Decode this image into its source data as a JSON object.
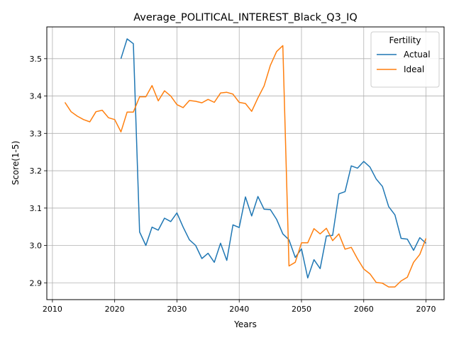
{
  "chart_data": {
    "type": "line",
    "title": "Average_POLITICAL_INTEREST_Black_Q3_IQ",
    "xlabel": "Years",
    "ylabel": "Score(1-5)",
    "xlim": [
      2009.1,
      2072.9
    ],
    "ylim": [
      2.855,
      3.585
    ],
    "x_ticks": [
      2010,
      2020,
      2030,
      2040,
      2050,
      2060,
      2070
    ],
    "y_ticks": [
      2.9,
      3.0,
      3.1,
      3.2,
      3.3,
      3.4,
      3.5
    ],
    "x_tick_labels": [
      "2010",
      "2020",
      "2030",
      "2040",
      "2050",
      "2060",
      "2070"
    ],
    "y_tick_labels": [
      "2.9",
      "3.0",
      "3.1",
      "3.2",
      "3.3",
      "3.4",
      "3.5"
    ],
    "grid": true,
    "legend": {
      "title": "Fertility",
      "placement": "top-right"
    },
    "series": [
      {
        "name": "Actual",
        "color": "#1f77b4",
        "x": [
          2021,
          2022,
          2023,
          2024,
          2025,
          2026,
          2027,
          2028,
          2029,
          2030,
          2031,
          2032,
          2033,
          2034,
          2035,
          2036,
          2037,
          2038,
          2039,
          2040,
          2041,
          2042,
          2043,
          2044,
          2045,
          2046,
          2047,
          2048,
          2049,
          2050,
          2051,
          2052,
          2053,
          2054,
          2055,
          2056,
          2057,
          2058,
          2059,
          2060,
          2061,
          2062,
          2063,
          2064,
          2065,
          2066,
          2067,
          2068,
          2069,
          2070
        ],
        "values": [
          3.5,
          3.553,
          3.54,
          3.036,
          3.0,
          3.049,
          3.041,
          3.073,
          3.064,
          3.087,
          3.049,
          3.015,
          3.0,
          2.965,
          2.979,
          2.955,
          3.006,
          2.96,
          3.055,
          3.048,
          3.13,
          3.079,
          3.131,
          3.097,
          3.096,
          3.07,
          3.031,
          3.015,
          2.968,
          2.991,
          2.913,
          2.962,
          2.938,
          3.025,
          3.027,
          3.138,
          3.144,
          3.213,
          3.207,
          3.225,
          3.21,
          3.178,
          3.158,
          3.104,
          3.082,
          3.019,
          3.017,
          2.987,
          3.021,
          3.006
        ]
      },
      {
        "name": "Ideal",
        "color": "#ff7f0e",
        "x": [
          2012,
          2013,
          2014,
          2015,
          2016,
          2017,
          2018,
          2019,
          2020,
          2021,
          2022,
          2023,
          2024,
          2025,
          2026,
          2027,
          2028,
          2029,
          2030,
          2031,
          2032,
          2033,
          2034,
          2035,
          2036,
          2037,
          2038,
          2039,
          2040,
          2041,
          2042,
          2043,
          2044,
          2045,
          2046,
          2047,
          2048,
          2049,
          2050,
          2051,
          2052,
          2053,
          2054,
          2055,
          2056,
          2057,
          2058,
          2059,
          2060,
          2061,
          2062,
          2063,
          2064,
          2065,
          2066,
          2067,
          2068,
          2069,
          2070
        ],
        "values": [
          3.383,
          3.358,
          3.346,
          3.337,
          3.331,
          3.358,
          3.362,
          3.342,
          3.337,
          3.304,
          3.357,
          3.357,
          3.398,
          3.398,
          3.428,
          3.387,
          3.414,
          3.4,
          3.377,
          3.369,
          3.388,
          3.386,
          3.382,
          3.391,
          3.383,
          3.408,
          3.41,
          3.405,
          3.383,
          3.38,
          3.359,
          3.395,
          3.427,
          3.482,
          3.519,
          3.535,
          2.945,
          2.955,
          3.007,
          3.007,
          3.045,
          3.031,
          3.046,
          3.013,
          3.031,
          2.99,
          2.995,
          2.964,
          2.937,
          2.924,
          2.901,
          2.899,
          2.889,
          2.889,
          2.905,
          2.915,
          2.955,
          2.976,
          3.019
        ]
      }
    ]
  }
}
